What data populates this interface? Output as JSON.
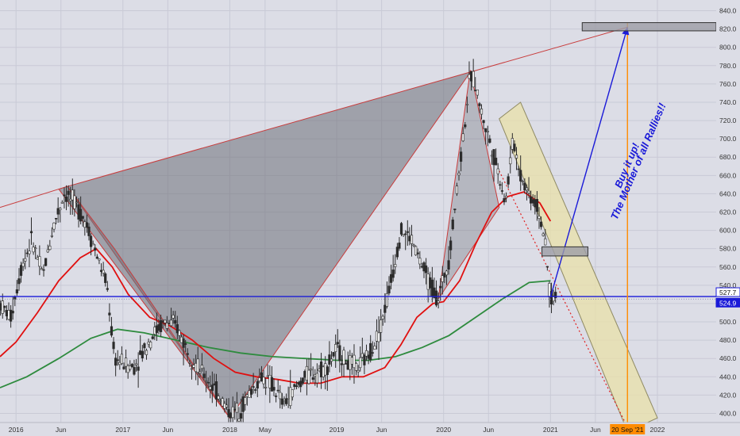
{
  "colors": {
    "background": "#dcdde6",
    "grid": "#c9cad6",
    "candle": "#2b2b2b",
    "ma_fast": "#e01010",
    "ma_slow": "#2e8b3e",
    "pattern_fill": "#6e6f78",
    "pattern_edge": "#c83c3c",
    "channel_fill": "#e9e0a8",
    "channel_edge": "#8f8a63",
    "trend_line": "#1a1ad8",
    "target_marker": "#ff8c00",
    "last_price_tag": "#1a1ad8"
  },
  "chart_data": {
    "type": "candlestick",
    "y_axis": {
      "min": 390,
      "max": 850,
      "ticks": [
        400,
        420,
        440,
        460,
        480,
        500,
        520,
        540,
        560,
        580,
        600,
        620,
        640,
        660,
        680,
        700,
        720,
        740,
        760,
        780,
        800,
        820,
        840
      ],
      "tick_labels": [
        "400.0",
        "420.0",
        "440.0",
        "460.0",
        "480.0",
        "500.0",
        "520.0",
        "540.0",
        "560.0",
        "580.0",
        "600.0",
        "620.0",
        "640.0",
        "660.0",
        "680.0",
        "700.0",
        "720.0",
        "740.0",
        "760.0",
        "780.0",
        "800.0",
        "820.0",
        "840.0"
      ],
      "side": "right"
    },
    "x_axis": {
      "start": 2015.85,
      "end": 2022.55,
      "ticks": [
        {
          "t": 2016.0,
          "label": "2016"
        },
        {
          "t": 2016.42,
          "label": "Jun"
        },
        {
          "t": 2017.0,
          "label": "2017"
        },
        {
          "t": 2017.42,
          "label": "Jun"
        },
        {
          "t": 2018.0,
          "label": "2018"
        },
        {
          "t": 2018.33,
          "label": "May"
        },
        {
          "t": 2019.0,
          "label": "2019"
        },
        {
          "t": 2019.42,
          "label": "Jun"
        },
        {
          "t": 2020.0,
          "label": "2020"
        },
        {
          "t": 2020.42,
          "label": "Jun"
        },
        {
          "t": 2021.0,
          "label": "2021"
        },
        {
          "t": 2021.42,
          "label": "Jun"
        },
        {
          "t": 2022.0,
          "label": "2022"
        }
      ],
      "highlight": {
        "t": 2021.72,
        "label": "20 Sep '21"
      }
    },
    "price_path": [
      [
        2015.85,
        520
      ],
      [
        2015.95,
        505
      ],
      [
        2016.05,
        560
      ],
      [
        2016.15,
        590
      ],
      [
        2016.25,
        550
      ],
      [
        2016.35,
        605
      ],
      [
        2016.45,
        640
      ],
      [
        2016.55,
        630
      ],
      [
        2016.65,
        610
      ],
      [
        2016.75,
        575
      ],
      [
        2016.85,
        540
      ],
      [
        2016.92,
        460
      ],
      [
        2017.0,
        455
      ],
      [
        2017.1,
        450
      ],
      [
        2017.2,
        470
      ],
      [
        2017.3,
        490
      ],
      [
        2017.4,
        500
      ],
      [
        2017.5,
        495
      ],
      [
        2017.6,
        470
      ],
      [
        2017.7,
        450
      ],
      [
        2017.8,
        435
      ],
      [
        2017.9,
        420
      ],
      [
        2018.0,
        400
      ],
      [
        2018.1,
        405
      ],
      [
        2018.2,
        425
      ],
      [
        2018.3,
        440
      ],
      [
        2018.4,
        430
      ],
      [
        2018.5,
        410
      ],
      [
        2018.6,
        425
      ],
      [
        2018.7,
        440
      ],
      [
        2018.8,
        445
      ],
      [
        2018.9,
        450
      ],
      [
        2019.0,
        470
      ],
      [
        2019.1,
        455
      ],
      [
        2019.2,
        450
      ],
      [
        2019.3,
        465
      ],
      [
        2019.4,
        490
      ],
      [
        2019.5,
        540
      ],
      [
        2019.6,
        600
      ],
      [
        2019.7,
        590
      ],
      [
        2019.8,
        560
      ],
      [
        2019.9,
        535
      ],
      [
        2019.95,
        525
      ],
      [
        2020.05,
        570
      ],
      [
        2020.12,
        640
      ],
      [
        2020.2,
        720
      ],
      [
        2020.25,
        770
      ],
      [
        2020.3,
        760
      ],
      [
        2020.35,
        730
      ],
      [
        2020.45,
        690
      ],
      [
        2020.52,
        660
      ],
      [
        2020.58,
        630
      ],
      [
        2020.65,
        700
      ],
      [
        2020.72,
        660
      ],
      [
        2020.8,
        640
      ],
      [
        2020.88,
        625
      ],
      [
        2020.93,
        600
      ],
      [
        2020.97,
        560
      ],
      [
        2021.0,
        525
      ],
      [
        2021.05,
        527.7
      ]
    ],
    "ma_fast": [
      [
        2015.85,
        462
      ],
      [
        2016.0,
        478
      ],
      [
        2016.2,
        510
      ],
      [
        2016.4,
        545
      ],
      [
        2016.6,
        570
      ],
      [
        2016.75,
        580
      ],
      [
        2016.9,
        560
      ],
      [
        2017.05,
        530
      ],
      [
        2017.25,
        505
      ],
      [
        2017.45,
        495
      ],
      [
        2017.65,
        480
      ],
      [
        2017.85,
        460
      ],
      [
        2018.05,
        445
      ],
      [
        2018.25,
        440
      ],
      [
        2018.45,
        437
      ],
      [
        2018.65,
        433
      ],
      [
        2018.85,
        433
      ],
      [
        2019.05,
        440
      ],
      [
        2019.25,
        440
      ],
      [
        2019.45,
        450
      ],
      [
        2019.6,
        475
      ],
      [
        2019.75,
        505
      ],
      [
        2019.9,
        520
      ],
      [
        2020.0,
        522
      ],
      [
        2020.15,
        545
      ],
      [
        2020.3,
        585
      ],
      [
        2020.45,
        620
      ],
      [
        2020.6,
        637
      ],
      [
        2020.75,
        642
      ],
      [
        2020.9,
        630
      ],
      [
        2021.0,
        610
      ]
    ],
    "ma_slow": [
      [
        2015.85,
        428
      ],
      [
        2016.1,
        440
      ],
      [
        2016.4,
        460
      ],
      [
        2016.7,
        482
      ],
      [
        2016.95,
        492
      ],
      [
        2017.2,
        488
      ],
      [
        2017.5,
        480
      ],
      [
        2017.8,
        472
      ],
      [
        2018.1,
        466
      ],
      [
        2018.4,
        462
      ],
      [
        2018.7,
        460
      ],
      [
        2019.0,
        458
      ],
      [
        2019.3,
        458
      ],
      [
        2019.55,
        462
      ],
      [
        2019.8,
        472
      ],
      [
        2020.05,
        485
      ],
      [
        2020.3,
        505
      ],
      [
        2020.55,
        525
      ],
      [
        2020.8,
        543
      ],
      [
        2021.0,
        545
      ]
    ],
    "pattern_polygons": [
      [
        [
          2015.85,
          625
        ],
        [
          2016.48,
          648
        ],
        [
          2020.25,
          773
        ],
        [
          2021.72,
          822
        ],
        [
          2020.25,
          773
        ],
        [
          2018.0,
          395
        ],
        [
          2016.48,
          648
        ]
      ],
      [
        [
          2016.48,
          648
        ],
        [
          2016.4,
          645
        ],
        [
          2018.0,
          395
        ],
        [
          2016.92,
          580
        ]
      ],
      [
        [
          2019.95,
          525
        ],
        [
          2020.25,
          775
        ],
        [
          2020.52,
          625
        ]
      ]
    ],
    "channel": [
      [
        2020.52,
        722
      ],
      [
        2021.72,
        380
      ],
      [
        2022.0,
        395
      ],
      [
        2020.72,
        740
      ]
    ],
    "channel_midline": [
      [
        2020.52,
        665
      ],
      [
        2021.72,
        385
      ]
    ],
    "trend_line": [
      [
        2021.0,
        527
      ],
      [
        2021.72,
        822
      ]
    ],
    "target_box": {
      "x0": 2021.72,
      "x1": 2022.55,
      "y0": 818,
      "y1": 827
    },
    "resistance_box": {
      "x0": 2020.92,
      "x1": 2021.35,
      "y0": 572,
      "y1": 582
    },
    "horizontal_line": 527.7,
    "target_vertical": 2021.72,
    "price_tags": [
      {
        "value": 527.7,
        "label": "527.7"
      },
      {
        "value": 524.9,
        "label": "524.9"
      }
    ]
  },
  "annotations": {
    "line1": "Buy it up!",
    "line2": "The Mother of all Rallies!!"
  }
}
